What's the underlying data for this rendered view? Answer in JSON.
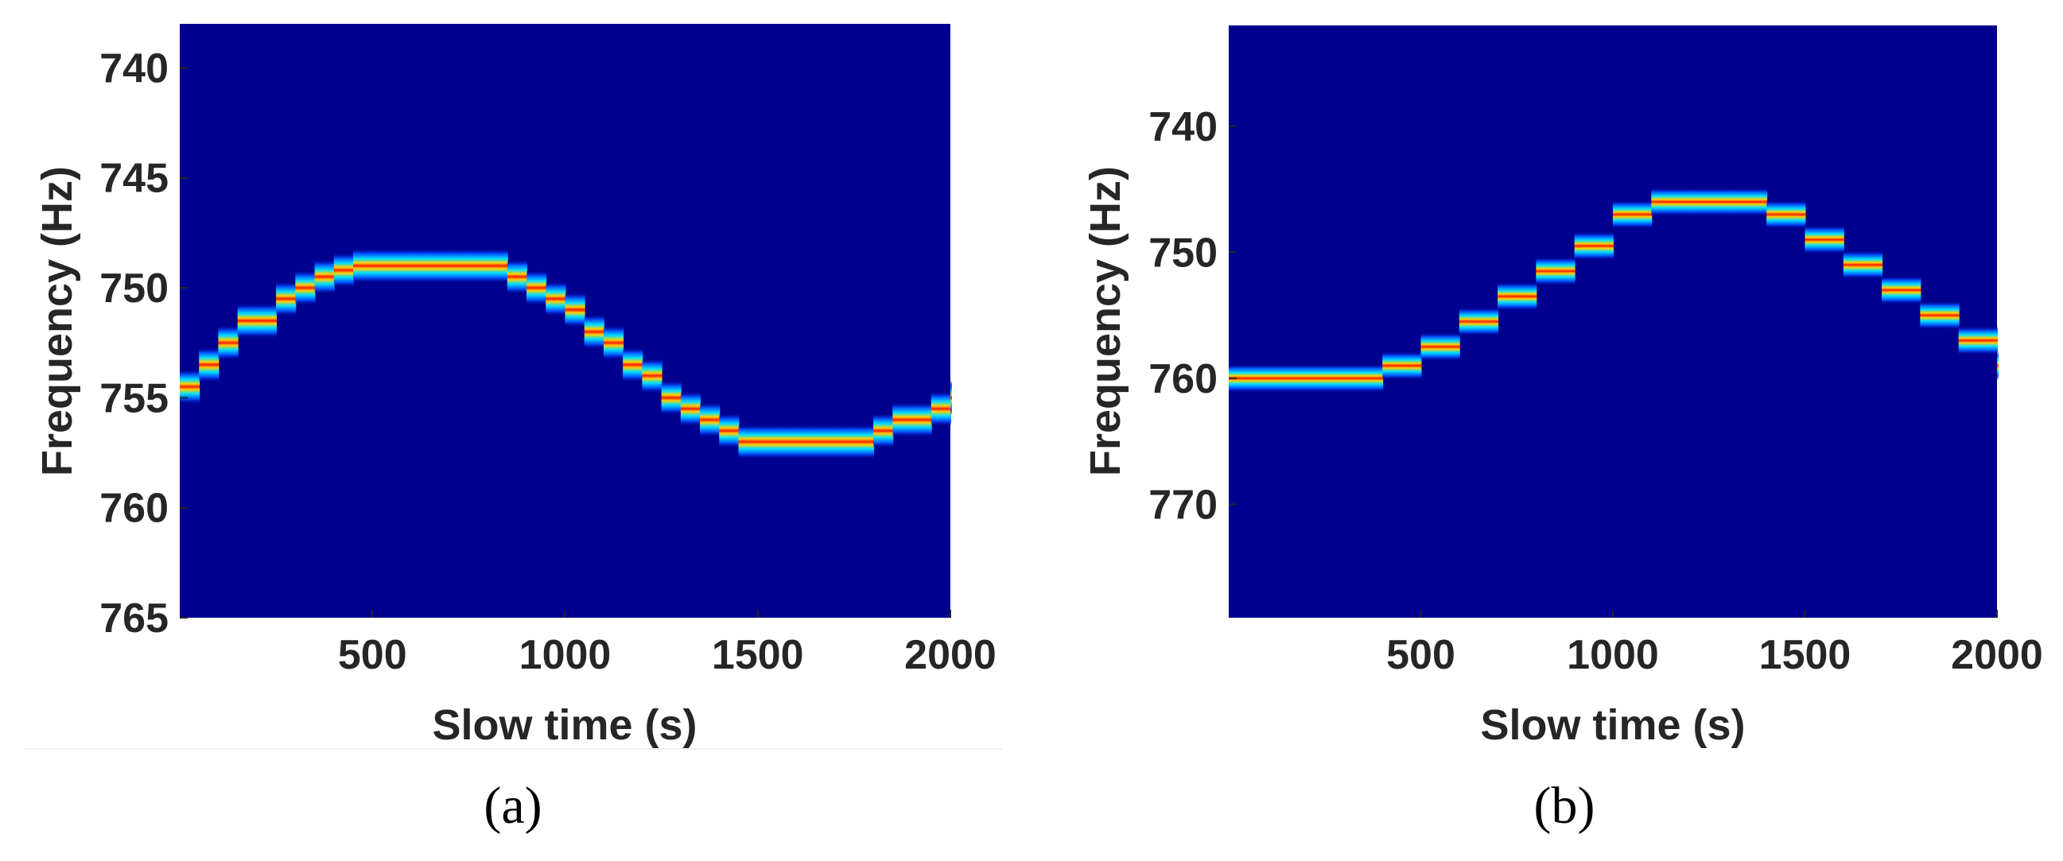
{
  "chart_data": [
    {
      "type": "heatmap",
      "panel_label": "(a)",
      "xlabel": "Slow time (s)",
      "ylabel": "Frequency (Hz)",
      "xlim": [
        0,
        2000
      ],
      "ylim": [
        738,
        765
      ],
      "y_reversed": true,
      "x_ticks": [
        500,
        1000,
        1500,
        2000
      ],
      "y_ticks": [
        740,
        745,
        750,
        755,
        760,
        765
      ],
      "colormap": "jet",
      "background_color": "#00008f",
      "ridge_points": [
        {
          "x": 0,
          "y": 754.5
        },
        {
          "x": 50,
          "y": 753.5
        },
        {
          "x": 100,
          "y": 752.5
        },
        {
          "x": 150,
          "y": 751.5
        },
        {
          "x": 200,
          "y": 751.5
        },
        {
          "x": 250,
          "y": 750.5
        },
        {
          "x": 300,
          "y": 750
        },
        {
          "x": 350,
          "y": 749.5
        },
        {
          "x": 400,
          "y": 749.2
        },
        {
          "x": 450,
          "y": 749
        },
        {
          "x": 500,
          "y": 749
        },
        {
          "x": 550,
          "y": 749
        },
        {
          "x": 600,
          "y": 749
        },
        {
          "x": 650,
          "y": 749
        },
        {
          "x": 700,
          "y": 749
        },
        {
          "x": 750,
          "y": 749
        },
        {
          "x": 800,
          "y": 749
        },
        {
          "x": 850,
          "y": 749.5
        },
        {
          "x": 900,
          "y": 750
        },
        {
          "x": 950,
          "y": 750.5
        },
        {
          "x": 1000,
          "y": 751
        },
        {
          "x": 1050,
          "y": 752
        },
        {
          "x": 1100,
          "y": 752.5
        },
        {
          "x": 1150,
          "y": 753.5
        },
        {
          "x": 1200,
          "y": 754
        },
        {
          "x": 1250,
          "y": 755
        },
        {
          "x": 1300,
          "y": 755.5
        },
        {
          "x": 1350,
          "y": 756
        },
        {
          "x": 1400,
          "y": 756.5
        },
        {
          "x": 1450,
          "y": 757
        },
        {
          "x": 1500,
          "y": 757
        },
        {
          "x": 1550,
          "y": 757
        },
        {
          "x": 1600,
          "y": 757
        },
        {
          "x": 1650,
          "y": 757
        },
        {
          "x": 1700,
          "y": 757
        },
        {
          "x": 1750,
          "y": 757
        },
        {
          "x": 1800,
          "y": 756.5
        },
        {
          "x": 1850,
          "y": 756
        },
        {
          "x": 1900,
          "y": 756
        },
        {
          "x": 1950,
          "y": 755.5
        },
        {
          "x": 2000,
          "y": 755
        }
      ]
    },
    {
      "type": "heatmap",
      "panel_label": "(b)",
      "xlabel": "Slow time (s)",
      "ylabel": "Frequency (Hz)",
      "xlim": [
        0,
        2000
      ],
      "ylim": [
        732,
        779
      ],
      "y_reversed": true,
      "x_ticks": [
        500,
        1000,
        1500,
        2000
      ],
      "y_ticks": [
        740,
        750,
        760,
        770
      ],
      "colormap": "jet",
      "background_color": "#00008f",
      "ridge_points": [
        {
          "x": 0,
          "y": 760
        },
        {
          "x": 100,
          "y": 760
        },
        {
          "x": 200,
          "y": 760
        },
        {
          "x": 300,
          "y": 760
        },
        {
          "x": 400,
          "y": 759
        },
        {
          "x": 500,
          "y": 757.5
        },
        {
          "x": 600,
          "y": 755.5
        },
        {
          "x": 700,
          "y": 753.5
        },
        {
          "x": 800,
          "y": 751.5
        },
        {
          "x": 900,
          "y": 749.5
        },
        {
          "x": 1000,
          "y": 747
        },
        {
          "x": 1100,
          "y": 746
        },
        {
          "x": 1200,
          "y": 746
        },
        {
          "x": 1300,
          "y": 746
        },
        {
          "x": 1400,
          "y": 747
        },
        {
          "x": 1500,
          "y": 749
        },
        {
          "x": 1600,
          "y": 751
        },
        {
          "x": 1700,
          "y": 753
        },
        {
          "x": 1800,
          "y": 755
        },
        {
          "x": 1900,
          "y": 757
        },
        {
          "x": 2000,
          "y": 759
        }
      ]
    }
  ]
}
